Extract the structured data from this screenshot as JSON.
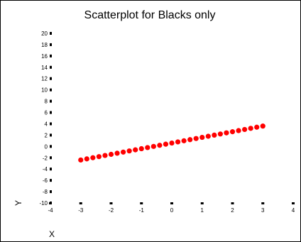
{
  "chart_data": {
    "type": "scatter",
    "title": "Scatterplot for Blacks only",
    "xlabel": "X",
    "ylabel": "Y",
    "xlim": [
      -4,
      4
    ],
    "ylim": [
      -10,
      20
    ],
    "x_ticks": [
      -4,
      -3,
      -2,
      -1,
      0,
      1,
      2,
      3,
      4
    ],
    "y_ticks": [
      -10,
      -8,
      -6,
      -4,
      -2,
      0,
      2,
      4,
      6,
      8,
      10,
      12,
      14,
      16,
      18,
      20
    ],
    "grid": false,
    "point_color": "#ff0000",
    "axis_color": "#000000",
    "series": [
      {
        "x": [
          -3.0,
          -2.8,
          -2.6,
          -2.4,
          -2.2,
          -2.0,
          -1.8,
          -1.6,
          -1.4,
          -1.2,
          -1.0,
          -0.8,
          -0.6,
          -0.4,
          -0.2,
          0.0,
          0.2,
          0.4,
          0.6,
          0.8,
          1.0,
          1.2,
          1.4,
          1.6,
          1.8,
          2.0,
          2.2,
          2.4,
          2.6,
          2.8,
          3.0
        ],
        "y": [
          -2.4,
          -2.2,
          -2.0,
          -1.8,
          -1.6,
          -1.4,
          -1.2,
          -1.0,
          -0.8,
          -0.6,
          -0.4,
          -0.2,
          0.0,
          0.2,
          0.4,
          0.6,
          0.8,
          1.0,
          1.2,
          1.4,
          1.6,
          1.8,
          2.0,
          2.2,
          2.4,
          2.6,
          2.8,
          3.0,
          3.2,
          3.4,
          3.6
        ]
      }
    ]
  }
}
